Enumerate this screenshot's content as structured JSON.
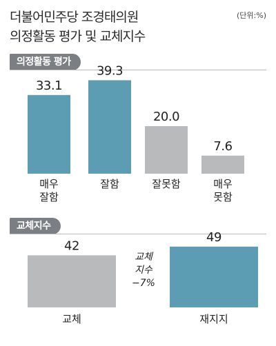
{
  "header": {
    "title_line1": "더불어민주당 조경태의원",
    "title_line2": "의정활동 평가 및 교체지수",
    "unit": "(단위:%)"
  },
  "chart_data": [
    {
      "type": "bar",
      "title": "의정활동 평가",
      "categories": [
        [
          "매우",
          "잘함"
        ],
        [
          "잘함"
        ],
        [
          "잘못함"
        ],
        [
          "매우",
          "못함"
        ]
      ],
      "values": [
        33.1,
        39.3,
        20.0,
        7.6
      ],
      "value_labels": [
        "33.1",
        "39.3",
        "20.0",
        "7.6"
      ],
      "ylim": [
        0,
        40
      ],
      "colors": [
        "#5d9db3",
        "#5d9db3",
        "#b8babc",
        "#b8babc"
      ]
    },
    {
      "type": "bar",
      "title": "교체지수",
      "categories": [
        [
          "교체"
        ],
        [
          "재지지"
        ]
      ],
      "values": [
        42,
        49
      ],
      "value_labels": [
        "42",
        "49"
      ],
      "ylim": [
        0,
        50
      ],
      "colors": [
        "#b8babc",
        "#5d9db3"
      ],
      "annotation": [
        "교체",
        "지수",
        "−7%"
      ]
    }
  ]
}
